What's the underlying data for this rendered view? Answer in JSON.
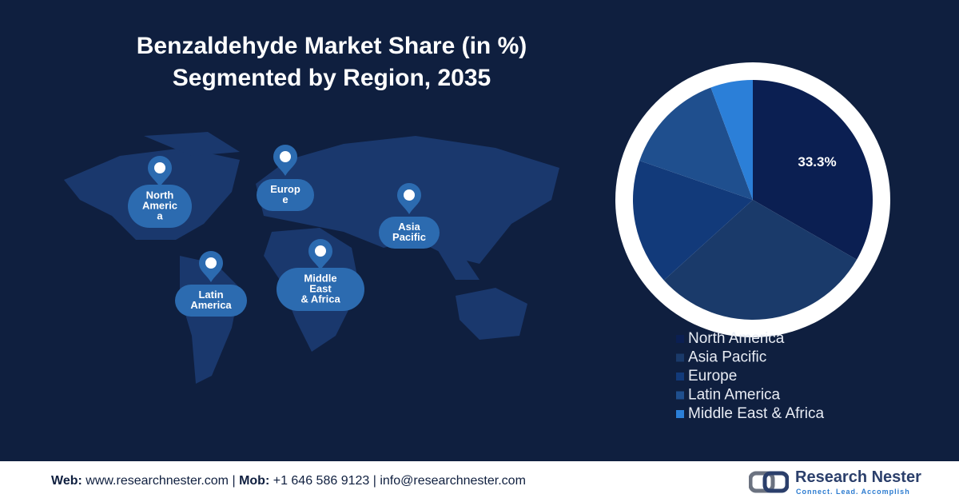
{
  "chart_data": {
    "type": "pie",
    "title": "Benzaldehyde Market Share (in %) Segmented by Region, 2035",
    "categories": [
      "North America",
      "Asia Pacific",
      "Europe",
      "Latin America",
      "Middle East & Africa"
    ],
    "values": [
      33.3,
      30,
      17,
      14,
      5.7
    ],
    "value_labels": [
      "33.3%",
      null,
      null,
      null,
      null
    ],
    "colors": [
      "#0b1f52",
      "#1a3a6a",
      "#123a7a",
      "#1f4f8e",
      "#2b7fd8"
    ]
  },
  "map_labels": [
    {
      "lines": [
        "North",
        "Americ",
        "a"
      ]
    },
    {
      "lines": [
        "Europ",
        "e"
      ]
    },
    {
      "lines": [
        "Asia",
        "Pacific"
      ]
    },
    {
      "lines": [
        "Latin",
        "America"
      ]
    },
    {
      "lines": [
        "Middle",
        "East",
        "& Africa"
      ]
    }
  ],
  "footer": {
    "web_label": "Web:",
    "web": "www.researchnester.com",
    "separator": "|",
    "mob_label": "Mob:",
    "mob": "+1 646 586 9123",
    "email": "info@researchnester.com"
  },
  "logo": {
    "name": "Research Nester",
    "tagline": "Connect. Lead. Accomplish"
  }
}
